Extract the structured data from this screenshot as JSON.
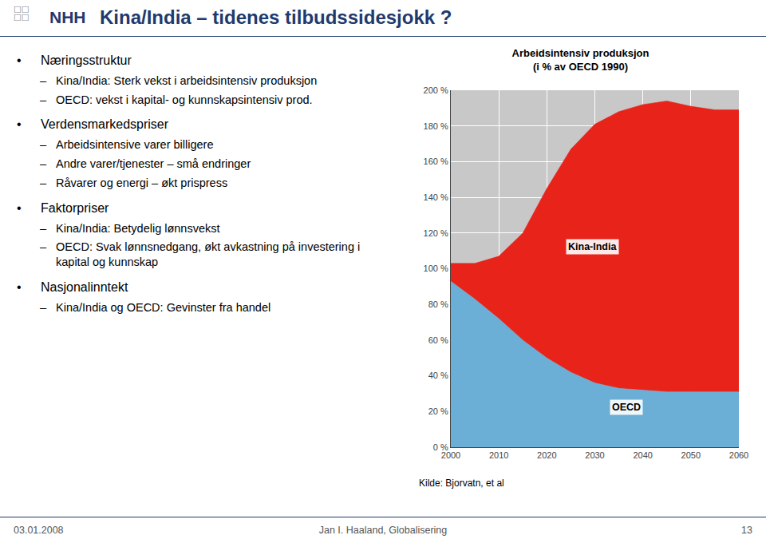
{
  "page": {
    "logo": "☐☐\n☐☐",
    "brand": "NHH",
    "heading": "Kina/India – tidenes tilbudssidesjokk ?",
    "color": "#1F3A6E",
    "footer": [
      "03.01.2008",
      "Jan I. Haaland, Globalisering",
      "13"
    ],
    "lines": [
      [
        "•",
        "Næringsstruktur"
      ],
      [
        "–",
        "Kina/India: Sterk vekst i arbeidsintensiv produksjon"
      ],
      [
        "–",
        "OECD: vekst i kapital- og kunnskapsintensiv prod."
      ],
      [
        "•",
        "Verdensmarkedspriser"
      ],
      [
        "–",
        "Arbeidsintensive varer billigere"
      ],
      [
        "–",
        "Andre varer/tjenester – små endringer"
      ],
      [
        "–",
        "Råvarer og energi – økt prispress"
      ],
      [
        "•",
        "Faktorpriser"
      ],
      [
        "–",
        "Kina/India: Betydelig lønnsvekst"
      ],
      [
        "–",
        "OECD: Svak lønnsnedgang, økt avkastning på investering i kapital og kunnskap"
      ],
      [
        "•",
        "Nasjonalinntekt"
      ],
      [
        "–",
        "Kina/India og OECD: Gevinster fra handel"
      ]
    ]
  },
  "chart_data": {
    "type": "area",
    "stacked": true,
    "title": "Arbeidsintensiv produksjon",
    "subtitle": "(i % av OECD 1990)",
    "source": "Kilde: Bjorvatn, et al",
    "x": [
      2000,
      2005,
      2010,
      2015,
      2020,
      2025,
      2030,
      2035,
      2040,
      2045,
      2050,
      2055,
      2060
    ],
    "series": [
      {
        "name": "OECD",
        "color": "#6BAED6",
        "values": [
          93,
          83,
          72,
          60,
          50,
          42,
          36,
          33,
          32,
          31,
          31,
          31,
          31
        ]
      },
      {
        "name": "Kina-India",
        "color": "#E8231A",
        "values": [
          10,
          20,
          35,
          60,
          95,
          125,
          145,
          155,
          160,
          163,
          160,
          158,
          158
        ]
      }
    ],
    "annotations": [
      {
        "text": "Kina-India",
        "x": 2024,
        "y": 108
      },
      {
        "text": "OECD",
        "x": 2033,
        "y": 18
      }
    ],
    "xlim": [
      2000,
      2060
    ],
    "xticks": [
      2000,
      2010,
      2020,
      2030,
      2040,
      2050,
      2060
    ],
    "ylim": [
      0,
      200
    ],
    "yticks": [
      {
        "value": 0,
        "label": "0 %"
      },
      {
        "value": 20,
        "label": "20 %"
      },
      {
        "value": 40,
        "label": "40 %"
      },
      {
        "value": 60,
        "label": "60 %"
      },
      {
        "value": 80,
        "label": "80 %"
      },
      {
        "value": 100,
        "label": "100 %"
      },
      {
        "value": 120,
        "label": "120 %"
      },
      {
        "value": 140,
        "label": "140 %"
      },
      {
        "value": 160,
        "label": "160 %"
      },
      {
        "value": 180,
        "label": "180 %"
      },
      {
        "value": 200,
        "label": "200 %"
      }
    ],
    "grid": true
  }
}
